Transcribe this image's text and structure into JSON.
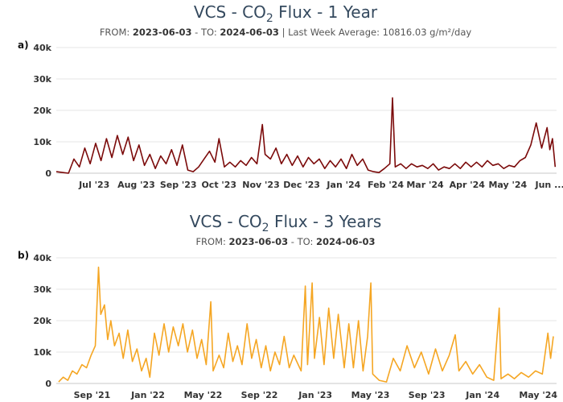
{
  "chart_data": [
    {
      "panel_label": "a)",
      "type": "line",
      "title_prefix": "VCS - CO",
      "title_sub": "2",
      "title_suffix": " Flux - 1 Year",
      "subtitle": {
        "from_label": "FROM: ",
        "from": "2023-06-03",
        "sep": " - TO: ",
        "to": "2024-06-03",
        "extra": " | Last Week Average: 10816.03 g/m²/day"
      },
      "color": "#7b0a0a",
      "xlim": [
        "2023-06-03",
        "2024-06-06"
      ],
      "ylim": [
        0,
        40000
      ],
      "yticks": [
        "0",
        "10k",
        "20k",
        "30k",
        "40k"
      ],
      "xticks": [
        {
          "date": "2023-07-01",
          "label": "Jul '23"
        },
        {
          "date": "2023-08-01",
          "label": "Aug '23"
        },
        {
          "date": "2023-09-01",
          "label": "Sep '23"
        },
        {
          "date": "2023-10-01",
          "label": "Oct '23"
        },
        {
          "date": "2023-11-01",
          "label": "Nov '23"
        },
        {
          "date": "2023-12-01",
          "label": "Dec '23"
        },
        {
          "date": "2024-01-01",
          "label": "Jan '24"
        },
        {
          "date": "2024-02-01",
          "label": "Feb '24"
        },
        {
          "date": "2024-03-01",
          "label": "Mar '24"
        },
        {
          "date": "2024-04-01",
          "label": "Apr '24"
        },
        {
          "date": "2024-05-01",
          "label": "May '24"
        },
        {
          "date": "2024-06-01",
          "label": "Jun ..."
        }
      ],
      "grid": true,
      "points": [
        [
          "2023-06-03",
          500
        ],
        [
          "2023-06-08",
          200
        ],
        [
          "2023-06-12",
          0
        ],
        [
          "2023-06-16",
          4500
        ],
        [
          "2023-06-20",
          2000
        ],
        [
          "2023-06-24",
          8000
        ],
        [
          "2023-06-28",
          3000
        ],
        [
          "2023-07-02",
          9500
        ],
        [
          "2023-07-06",
          4000
        ],
        [
          "2023-07-10",
          11000
        ],
        [
          "2023-07-14",
          5000
        ],
        [
          "2023-07-18",
          12000
        ],
        [
          "2023-07-22",
          6000
        ],
        [
          "2023-07-26",
          11500
        ],
        [
          "2023-07-30",
          4000
        ],
        [
          "2023-08-03",
          9000
        ],
        [
          "2023-08-07",
          2500
        ],
        [
          "2023-08-11",
          6000
        ],
        [
          "2023-08-15",
          1500
        ],
        [
          "2023-08-19",
          5500
        ],
        [
          "2023-08-23",
          3000
        ],
        [
          "2023-08-27",
          7500
        ],
        [
          "2023-08-31",
          2500
        ],
        [
          "2023-09-04",
          9000
        ],
        [
          "2023-09-08",
          1000
        ],
        [
          "2023-09-12",
          500
        ],
        [
          "2023-09-16",
          2000
        ],
        [
          "2023-09-20",
          4500
        ],
        [
          "2023-09-24",
          7000
        ],
        [
          "2023-09-28",
          3500
        ],
        [
          "2023-10-01",
          11000
        ],
        [
          "2023-10-05",
          2000
        ],
        [
          "2023-10-09",
          3500
        ],
        [
          "2023-10-13",
          2000
        ],
        [
          "2023-10-17",
          4000
        ],
        [
          "2023-10-21",
          2500
        ],
        [
          "2023-10-25",
          5000
        ],
        [
          "2023-10-29",
          3000
        ],
        [
          "2023-11-02",
          15500
        ],
        [
          "2023-11-04",
          6000
        ],
        [
          "2023-11-08",
          4500
        ],
        [
          "2023-11-12",
          8000
        ],
        [
          "2023-11-16",
          3000
        ],
        [
          "2023-11-20",
          6000
        ],
        [
          "2023-11-24",
          2500
        ],
        [
          "2023-11-28",
          5500
        ],
        [
          "2023-12-02",
          2000
        ],
        [
          "2023-12-06",
          5000
        ],
        [
          "2023-12-10",
          3000
        ],
        [
          "2023-12-14",
          4500
        ],
        [
          "2023-12-18",
          1500
        ],
        [
          "2023-12-22",
          4000
        ],
        [
          "2023-12-26",
          2000
        ],
        [
          "2023-12-30",
          4500
        ],
        [
          "2024-01-03",
          1500
        ],
        [
          "2024-01-07",
          6000
        ],
        [
          "2024-01-11",
          2500
        ],
        [
          "2024-01-15",
          4500
        ],
        [
          "2024-01-19",
          1000
        ],
        [
          "2024-01-23",
          500
        ],
        [
          "2024-01-27",
          200
        ],
        [
          "2024-01-31",
          1500
        ],
        [
          "2024-02-04",
          3000
        ],
        [
          "2024-02-06",
          24000
        ],
        [
          "2024-02-08",
          2000
        ],
        [
          "2024-02-12",
          3000
        ],
        [
          "2024-02-16",
          1500
        ],
        [
          "2024-02-20",
          3000
        ],
        [
          "2024-02-24",
          2000
        ],
        [
          "2024-02-28",
          2500
        ],
        [
          "2024-03-03",
          1500
        ],
        [
          "2024-03-07",
          3000
        ],
        [
          "2024-03-11",
          1000
        ],
        [
          "2024-03-15",
          2000
        ],
        [
          "2024-03-19",
          1500
        ],
        [
          "2024-03-23",
          3000
        ],
        [
          "2024-03-27",
          1500
        ],
        [
          "2024-03-31",
          3500
        ],
        [
          "2024-04-04",
          2000
        ],
        [
          "2024-04-08",
          3500
        ],
        [
          "2024-04-12",
          2000
        ],
        [
          "2024-04-16",
          4000
        ],
        [
          "2024-04-20",
          2500
        ],
        [
          "2024-04-24",
          3000
        ],
        [
          "2024-04-28",
          1500
        ],
        [
          "2024-05-02",
          2500
        ],
        [
          "2024-05-06",
          2000
        ],
        [
          "2024-05-10",
          4000
        ],
        [
          "2024-05-14",
          5000
        ],
        [
          "2024-05-18",
          9000
        ],
        [
          "2024-05-22",
          16000
        ],
        [
          "2024-05-26",
          8000
        ],
        [
          "2024-05-30",
          14500
        ],
        [
          "2024-06-01",
          7500
        ],
        [
          "2024-06-03",
          11000
        ],
        [
          "2024-06-05",
          2000
        ]
      ]
    },
    {
      "panel_label": "b)",
      "type": "line",
      "title_prefix": "VCS - CO",
      "title_sub": "2",
      "title_suffix": " Flux - 3 Years",
      "subtitle": {
        "from_label": "FROM: ",
        "from": "2023-06-03",
        "sep": " - TO: ",
        "to": "2024-06-03",
        "extra": ""
      },
      "color": "#f5a623",
      "xlim": [
        "2021-06-15",
        "2024-06-10"
      ],
      "ylim": [
        0,
        40000
      ],
      "yticks": [
        "0",
        "10k",
        "20k",
        "30k",
        "40k"
      ],
      "xticks": [
        {
          "date": "2021-09-01",
          "label": "Sep '21"
        },
        {
          "date": "2022-01-01",
          "label": "Jan '22"
        },
        {
          "date": "2022-05-01",
          "label": "May '22"
        },
        {
          "date": "2022-09-01",
          "label": "Sep '22"
        },
        {
          "date": "2023-01-01",
          "label": "Jan '23"
        },
        {
          "date": "2023-05-01",
          "label": "May '23"
        },
        {
          "date": "2023-09-01",
          "label": "Sep '23"
        },
        {
          "date": "2024-01-01",
          "label": "Jan '24"
        },
        {
          "date": "2024-05-01",
          "label": "May '24"
        }
      ],
      "grid": true,
      "points": [
        [
          "2021-06-20",
          500
        ],
        [
          "2021-06-30",
          2000
        ],
        [
          "2021-07-10",
          1000
        ],
        [
          "2021-07-20",
          4000
        ],
        [
          "2021-07-30",
          3000
        ],
        [
          "2021-08-10",
          6000
        ],
        [
          "2021-08-20",
          5000
        ],
        [
          "2021-08-30",
          9000
        ],
        [
          "2021-09-08",
          12000
        ],
        [
          "2021-09-15",
          37000
        ],
        [
          "2021-09-20",
          22000
        ],
        [
          "2021-09-28",
          25000
        ],
        [
          "2021-10-05",
          14000
        ],
        [
          "2021-10-12",
          20000
        ],
        [
          "2021-10-20",
          12000
        ],
        [
          "2021-10-30",
          16000
        ],
        [
          "2021-11-08",
          8000
        ],
        [
          "2021-11-18",
          17000
        ],
        [
          "2021-11-28",
          7000
        ],
        [
          "2021-12-08",
          11000
        ],
        [
          "2021-12-18",
          4000
        ],
        [
          "2021-12-28",
          8000
        ],
        [
          "2022-01-05",
          2000
        ],
        [
          "2022-01-15",
          16000
        ],
        [
          "2022-01-25",
          9000
        ],
        [
          "2022-02-05",
          19000
        ],
        [
          "2022-02-15",
          10000
        ],
        [
          "2022-02-25",
          18000
        ],
        [
          "2022-03-08",
          12000
        ],
        [
          "2022-03-18",
          19000
        ],
        [
          "2022-03-28",
          10000
        ],
        [
          "2022-04-08",
          17000
        ],
        [
          "2022-04-18",
          8000
        ],
        [
          "2022-04-28",
          14000
        ],
        [
          "2022-05-08",
          6000
        ],
        [
          "2022-05-18",
          26000
        ],
        [
          "2022-05-23",
          4000
        ],
        [
          "2022-06-05",
          9000
        ],
        [
          "2022-06-15",
          5000
        ],
        [
          "2022-06-25",
          16000
        ],
        [
          "2022-07-05",
          7000
        ],
        [
          "2022-07-15",
          12000
        ],
        [
          "2022-07-25",
          6000
        ],
        [
          "2022-08-05",
          19000
        ],
        [
          "2022-08-15",
          8000
        ],
        [
          "2022-08-25",
          14000
        ],
        [
          "2022-09-05",
          5000
        ],
        [
          "2022-09-15",
          12000
        ],
        [
          "2022-09-25",
          4000
        ],
        [
          "2022-10-05",
          10000
        ],
        [
          "2022-10-15",
          6000
        ],
        [
          "2022-10-25",
          15000
        ],
        [
          "2022-11-05",
          5000
        ],
        [
          "2022-11-15",
          9000
        ],
        [
          "2022-12-01",
          4000
        ],
        [
          "2022-12-10",
          31000
        ],
        [
          "2022-12-15",
          6000
        ],
        [
          "2022-12-25",
          32000
        ],
        [
          "2022-12-30",
          8000
        ],
        [
          "2023-01-10",
          21000
        ],
        [
          "2023-01-20",
          6000
        ],
        [
          "2023-01-30",
          24000
        ],
        [
          "2023-02-10",
          8000
        ],
        [
          "2023-02-20",
          22000
        ],
        [
          "2023-03-05",
          5000
        ],
        [
          "2023-03-15",
          19000
        ],
        [
          "2023-03-25",
          5000
        ],
        [
          "2023-04-05",
          20000
        ],
        [
          "2023-04-15",
          4000
        ],
        [
          "2023-04-25",
          15000
        ],
        [
          "2023-05-02",
          32000
        ],
        [
          "2023-05-06",
          3000
        ],
        [
          "2023-05-20",
          1000
        ],
        [
          "2023-06-05",
          500
        ],
        [
          "2023-06-20",
          8000
        ],
        [
          "2023-07-05",
          4000
        ],
        [
          "2023-07-20",
          12000
        ],
        [
          "2023-08-05",
          5000
        ],
        [
          "2023-08-20",
          10000
        ],
        [
          "2023-09-05",
          3000
        ],
        [
          "2023-09-20",
          11000
        ],
        [
          "2023-10-05",
          4000
        ],
        [
          "2023-10-20",
          9000
        ],
        [
          "2023-11-02",
          15500
        ],
        [
          "2023-11-10",
          4000
        ],
        [
          "2023-11-25",
          7000
        ],
        [
          "2023-12-10",
          3000
        ],
        [
          "2023-12-25",
          6000
        ],
        [
          "2024-01-10",
          2000
        ],
        [
          "2024-01-25",
          1000
        ],
        [
          "2024-02-06",
          24000
        ],
        [
          "2024-02-10",
          1500
        ],
        [
          "2024-02-25",
          3000
        ],
        [
          "2024-03-10",
          1500
        ],
        [
          "2024-03-25",
          3500
        ],
        [
          "2024-04-10",
          2000
        ],
        [
          "2024-04-25",
          4000
        ],
        [
          "2024-05-10",
          3000
        ],
        [
          "2024-05-22",
          16000
        ],
        [
          "2024-05-28",
          8000
        ],
        [
          "2024-06-03",
          15000
        ]
      ]
    }
  ]
}
